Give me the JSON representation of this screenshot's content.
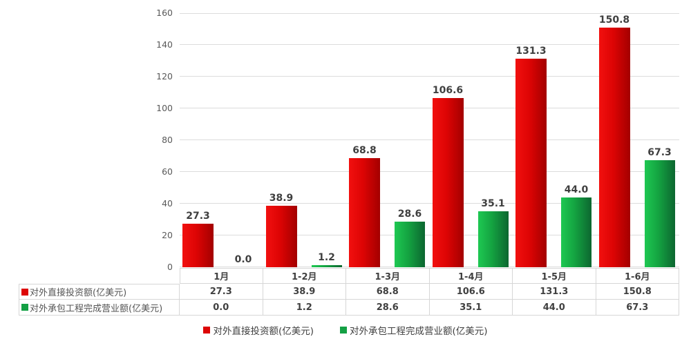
{
  "chart_data": {
    "type": "bar",
    "title": "",
    "xlabel": "",
    "ylabel": "",
    "categories": [
      "1月",
      "1-2月",
      "1-3月",
      "1-4月",
      "1-5月",
      "1-6月"
    ],
    "series": [
      {
        "name": "对外直接投资额(亿美元)",
        "key_color": "#dd0505",
        "gradient": [
          "#f2100f",
          "#dd0404",
          "#a30000"
        ],
        "values": [
          27.3,
          38.9,
          68.8,
          106.6,
          131.3,
          150.8
        ],
        "labels": [
          "27.3",
          "38.9",
          "68.8",
          "106.6",
          "131.3",
          "150.8"
        ]
      },
      {
        "name": "对外承包工程完成营业额(亿美元)",
        "key_color": "#14a044",
        "gradient": [
          "#1ec852",
          "#14a341",
          "#0c6630"
        ],
        "values": [
          0.0,
          1.2,
          28.6,
          35.1,
          44.0,
          67.3
        ],
        "labels": [
          "0.0",
          "1.2",
          "28.6",
          "35.1",
          "44.0",
          "67.3"
        ]
      }
    ],
    "ylim": [
      0,
      160
    ],
    "ytick_step": 20,
    "yticks": [
      "0",
      "20",
      "40",
      "60",
      "80",
      "100",
      "120",
      "140",
      "160"
    ],
    "grid": true,
    "data_table_shown": true,
    "legend_position": "bottom"
  }
}
